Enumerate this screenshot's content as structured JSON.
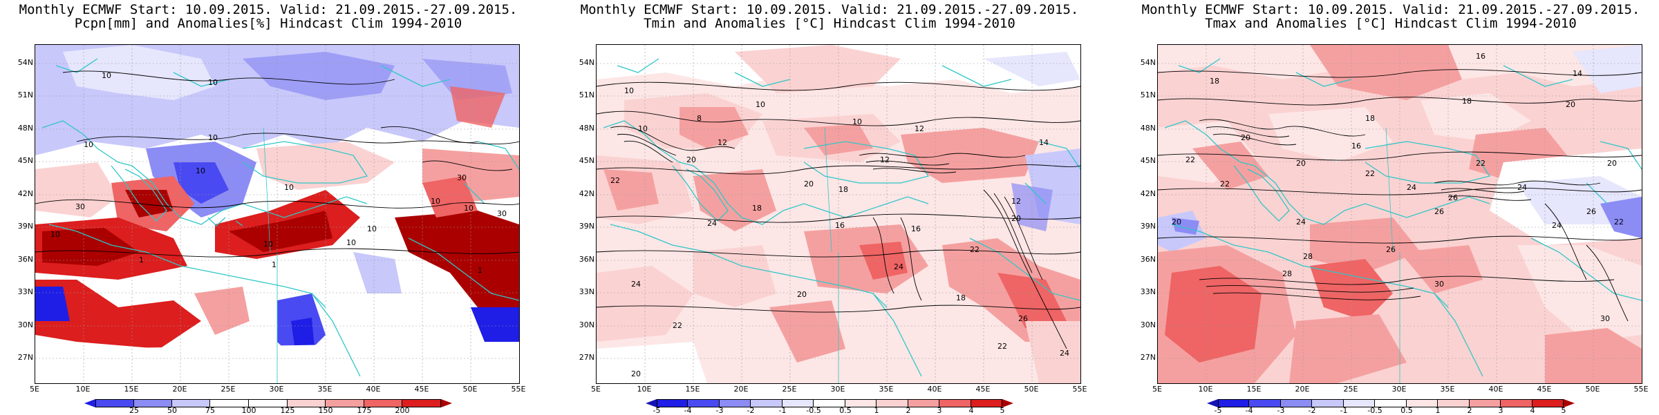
{
  "map_extent": {
    "lon_min": 5,
    "lon_max": 55,
    "lat_min": 24.5,
    "lat_max": 55.5
  },
  "colors": {
    "coast": "#2fc7c7",
    "contour": "#000000",
    "anom_neg": [
      "#1e1ee6",
      "#4a4af2",
      "#8c8cf5",
      "#c8c8fb"
    ],
    "anom_pos": [
      "#fbd2d2",
      "#f5a0a0",
      "#ef6464",
      "#dc1e1e",
      "#aa0000"
    ]
  },
  "panels": [
    {
      "title_line1": "Monthly ECMWF Start: 10.09.2015. Valid: 21.09.2015.-27.09.2015.",
      "title_line2": "Pcpn[mm] and Anomalies[%] Hindcast Clim 1994-2010",
      "y_ticks": [
        "54N",
        "51N",
        "48N",
        "45N",
        "42N",
        "39N",
        "36N",
        "33N",
        "30N",
        "27N"
      ],
      "x_ticks": [
        "5E",
        "10E",
        "15E",
        "20E",
        "25E",
        "30E",
        "35E",
        "40E",
        "45E",
        "50E",
        "55E"
      ],
      "colorbar": {
        "labels": [
          "25",
          "50",
          "75",
          "100",
          "125",
          "150",
          "175",
          "200"
        ],
        "colors": [
          "#1e1ee6",
          "#4a4af2",
          "#8c8cf5",
          "#c8c8fb",
          "#ffffff",
          "#fbd2d2",
          "#f5a0a0",
          "#ef6464",
          "#aa0000"
        ]
      },
      "contour_labels": [
        "10",
        "10",
        "10",
        "10",
        "10",
        "10",
        "30",
        "30",
        "10",
        "30",
        "10",
        "10",
        "10",
        "1",
        "1",
        "1",
        "10",
        "10"
      ]
    },
    {
      "title_line1": "Monthly ECMWF Start: 10.09.2015. Valid: 21.09.2015.-27.09.2015.",
      "title_line2": "Tmin and Anomalies [°C] Hindcast Clim 1994-2010",
      "y_ticks": [
        "54N",
        "51N",
        "48N",
        "45N",
        "42N",
        "39N",
        "36N",
        "33N",
        "30N",
        "27N"
      ],
      "x_ticks": [
        "5E",
        "10E",
        "15E",
        "20E",
        "25E",
        "30E",
        "35E",
        "40E",
        "45E",
        "50E",
        "55E"
      ],
      "colorbar": {
        "labels": [
          "-5",
          "-4",
          "-3",
          "-2",
          "-1",
          "-0.5",
          "0.5",
          "1",
          "2",
          "3",
          "4",
          "5"
        ],
        "colors": [
          "#1414b4",
          "#1e1ee6",
          "#4a4af2",
          "#8c8cf5",
          "#c8c8fb",
          "#e6e6fd",
          "#ffffff",
          "#fde6e6",
          "#fbd2d2",
          "#f5a0a0",
          "#ef6464",
          "#dc1e1e",
          "#aa0000"
        ]
      },
      "contour_labels": [
        "10",
        "10",
        "10",
        "12",
        "12",
        "14",
        "16",
        "18",
        "20",
        "22",
        "24",
        "20",
        "18",
        "16",
        "12",
        "8",
        "10",
        "12",
        "20",
        "22",
        "24",
        "20",
        "22",
        "24",
        "26",
        "22",
        "20",
        "18",
        "24"
      ]
    },
    {
      "title_line1": "Monthly ECMWF Start: 10.09.2015. Valid: 21.09.2015.-27.09.2015.",
      "title_line2": "Tmax and Anomalies [°C] Hindcast Clim 1994-2010",
      "y_ticks": [
        "54N",
        "51N",
        "48N",
        "45N",
        "42N",
        "39N",
        "36N",
        "33N",
        "30N",
        "27N"
      ],
      "x_ticks": [
        "5E",
        "10E",
        "15E",
        "20E",
        "25E",
        "30E",
        "35E",
        "40E",
        "45E",
        "50E",
        "55E"
      ],
      "colorbar": {
        "labels": [
          "-5",
          "-4",
          "-3",
          "-2",
          "-1",
          "-0.5",
          "0.5",
          "1",
          "2",
          "3",
          "4",
          "5"
        ],
        "colors": [
          "#1414b4",
          "#1e1ee6",
          "#4a4af2",
          "#8c8cf5",
          "#c8c8fb",
          "#e6e6fd",
          "#ffffff",
          "#fde6e6",
          "#fbd2d2",
          "#f5a0a0",
          "#ef6464",
          "#dc1e1e",
          "#aa0000"
        ]
      },
      "contour_labels": [
        "14",
        "16",
        "18",
        "18",
        "20",
        "20",
        "22",
        "22",
        "24",
        "26",
        "28",
        "30",
        "26",
        "24",
        "22",
        "20",
        "16",
        "18",
        "20",
        "22",
        "24",
        "26",
        "28",
        "30",
        "26",
        "24",
        "22",
        "20"
      ]
    }
  ]
}
